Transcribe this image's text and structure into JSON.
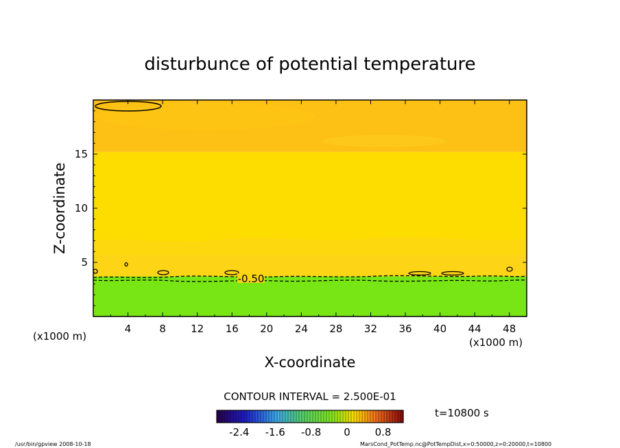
{
  "chart_data": {
    "type": "heatmap",
    "title": "disturbunce of potential temperature",
    "xlabel": "X-coordinate",
    "ylabel": "Z-coordinate",
    "x_unit_left": "(x1000 m)",
    "x_unit_right": "(x1000 m)",
    "xlim": [
      0,
      50
    ],
    "ylim": [
      0,
      20
    ],
    "x_ticks": [
      4,
      8,
      12,
      16,
      20,
      24,
      28,
      32,
      36,
      40,
      44,
      48
    ],
    "y_ticks": [
      5,
      10,
      15
    ],
    "bands": [
      {
        "z0": 0.0,
        "z1": 3.7,
        "value": -0.7,
        "color": "#78e614"
      },
      {
        "z0": 3.7,
        "z1": 6.8,
        "value": -0.1,
        "color": "#fdd516"
      },
      {
        "z0": 6.8,
        "z1": 15.2,
        "value": 0.0,
        "color": "#fddc00"
      },
      {
        "z0": 15.2,
        "z1": 20.0,
        "value": 0.2,
        "color": "#fdc014"
      }
    ],
    "contour_label": "-0.50",
    "contour_level": -0.5,
    "contour_interval_text": "CONTOUR INTERVAL = 2.500E-01",
    "colorbar": {
      "ticks": [
        "-2.4",
        "-1.6",
        "-0.8",
        "0",
        "0.8"
      ],
      "tick_values": [
        -2.4,
        -1.6,
        -0.8,
        0,
        0.8
      ],
      "range": [
        -2.9,
        1.25
      ]
    },
    "time_label": "t=10800 s"
  },
  "footer": {
    "left": "/usr/bin/gpview  2008-10-18",
    "right": "MarsCond_PotTemp.nc@PotTempDist,x=0:50000,z=0:20000,t=10800"
  }
}
